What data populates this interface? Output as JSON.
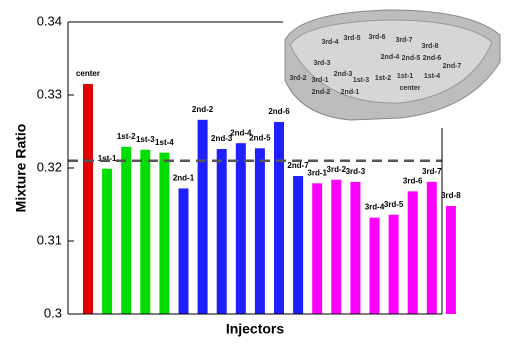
{
  "chart_data": {
    "type": "bar",
    "x_label": "Injectors",
    "y_label": "Mixture Ratio",
    "categories": [
      "center",
      "1st-1",
      "1st-2",
      "1st-3",
      "1st-4",
      "2nd-1",
      "2nd-2",
      "2nd-3",
      "2nd-4",
      "2nd-5",
      "2nd-6",
      "2nd-7",
      "3rd-1",
      "3rd-2",
      "3rd-3",
      "3rd-4",
      "3rd-5",
      "3rd-6",
      "3rd-7",
      "3rd-8"
    ],
    "values": [
      0.3315,
      0.3199,
      0.3229,
      0.3225,
      0.3221,
      0.3172,
      0.3266,
      0.3226,
      0.3234,
      0.3227,
      0.3263,
      0.3189,
      0.3179,
      0.3184,
      0.3181,
      0.3132,
      0.3136,
      0.3168,
      0.3181,
      0.3148
    ],
    "colors": [
      "#e00000",
      "#00dd00",
      "#00dd00",
      "#00dd00",
      "#00dd00",
      "#2020ff",
      "#2020ff",
      "#2020ff",
      "#2020ff",
      "#2020ff",
      "#2020ff",
      "#2020ff",
      "#ff00ff",
      "#ff00ff",
      "#ff00ff",
      "#ff00ff",
      "#ff00ff",
      "#ff00ff",
      "#ff00ff",
      "#ff00ff"
    ],
    "reference_line": 0.321,
    "ylim": [
      0.3,
      0.34
    ],
    "yticks": [
      0.3,
      0.31,
      0.32,
      0.33,
      0.34
    ]
  }
}
